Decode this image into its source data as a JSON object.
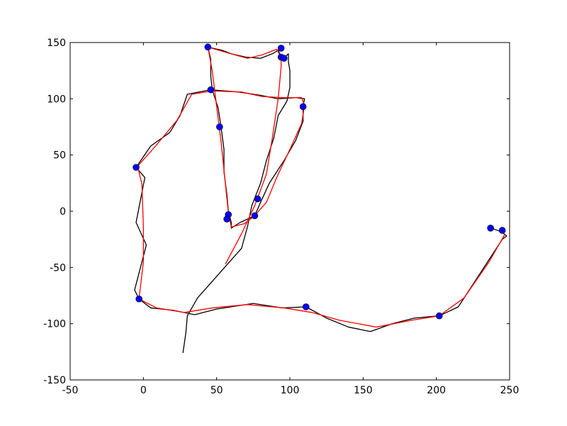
{
  "chart_data": {
    "type": "line",
    "xlim": [
      -50,
      250
    ],
    "ylim": [
      -150,
      150
    ],
    "xticks": [
      -50,
      0,
      50,
      100,
      150,
      200,
      250
    ],
    "yticks": [
      -150,
      -100,
      -50,
      0,
      50,
      100,
      150
    ],
    "grid": false,
    "series": [
      {
        "color": "#000000",
        "mode": "line",
        "x": [
          27,
          29,
          30,
          37,
          52,
          67,
          71,
          74,
          80,
          84,
          89,
          92,
          98,
          100,
          100,
          99,
          99,
          95,
          92,
          88,
          80,
          70,
          60,
          54,
          44,
          46,
          46,
          47,
          51,
          53,
          55,
          55,
          57,
          58,
          60,
          60,
          66,
          76,
          80,
          86,
          96,
          104,
          109,
          109,
          110,
          104,
          92,
          80,
          65,
          46,
          30,
          25,
          18,
          5,
          -5,
          1,
          -2,
          -5,
          2,
          -2,
          -6,
          -3,
          5,
          20,
          35,
          50,
          75,
          95,
          111,
          125,
          140,
          155,
          170,
          185,
          202,
          215,
          225,
          235,
          245,
          248,
          244,
          237
        ],
        "values": [
          -126,
          -108,
          -93,
          -77,
          -55,
          -33,
          -14,
          5,
          25,
          45,
          65,
          85,
          98,
          110,
          125,
          133,
          140,
          135,
          143,
          140,
          136,
          137,
          140,
          143,
          146,
          135,
          120,
          108,
          92,
          75,
          55,
          35,
          15,
          0,
          -10,
          -15,
          -10,
          -4,
          8,
          25,
          45,
          63,
          80,
          93,
          100,
          101,
          100,
          103,
          106,
          108,
          104,
          85,
          70,
          58,
          39,
          30,
          10,
          -10,
          -30,
          -50,
          -70,
          -78,
          -86,
          -88,
          -92,
          -87,
          -82,
          -86,
          -85,
          -95,
          -103,
          -107,
          -100,
          -95,
          -93,
          -85,
          -65,
          -45,
          -25,
          -22,
          -18,
          -15
        ]
      },
      {
        "color": "#ff0000",
        "mode": "line",
        "x": [
          56,
          67,
          76,
          84,
          88,
          92,
          94,
          94,
          91,
          81,
          71,
          57,
          44,
          47,
          50,
          53,
          56,
          58,
          60,
          69,
          76,
          84,
          91,
          100,
          108,
          110,
          108,
          96,
          81,
          67,
          47,
          33,
          23,
          9,
          -4,
          -1,
          0,
          0,
          -3,
          9,
          28,
          47,
          71,
          96,
          115,
          134,
          159,
          183,
          202,
          219,
          236,
          247
        ],
        "values": [
          -47,
          -20,
          5,
          33,
          65,
          100,
          128,
          137,
          144,
          139,
          136,
          141,
          146,
          125,
          93,
          62,
          24,
          -1,
          -14,
          -11,
          -4,
          8,
          30,
          55,
          78,
          94,
          101,
          101,
          102,
          106,
          107,
          104,
          81,
          59,
          40,
          24,
          -14,
          -45,
          -78,
          -86,
          -90,
          -86,
          -83,
          -86,
          -90,
          -97,
          -103,
          -97,
          -93,
          -77,
          -45,
          -20
        ]
      },
      {
        "color": "#0000ff",
        "mode": "markers",
        "x": [
          44,
          94,
          94,
          96,
          46,
          109,
          52,
          -5,
          78,
          58,
          57,
          76,
          -3,
          111,
          202,
          237,
          245
        ],
        "values": [
          146,
          145,
          137,
          136,
          108,
          93,
          75,
          39,
          11,
          -3,
          -7,
          -4,
          -78,
          -85,
          -93,
          -15,
          -17
        ]
      }
    ]
  }
}
